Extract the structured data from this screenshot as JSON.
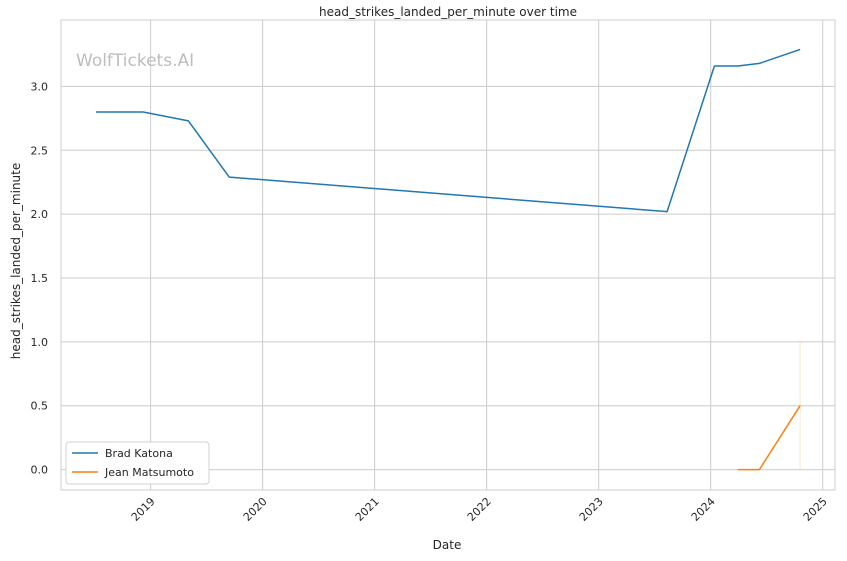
{
  "chart_data": {
    "type": "line",
    "title": "head_strikes_landed_per_minute over time",
    "xlabel": "Date",
    "ylabel": "head_strikes_landed_per_minute",
    "watermark": "WolfTickets.AI",
    "xlim": [
      "2018-03-15",
      "2025-02-10"
    ],
    "ylim": [
      -0.16,
      3.52
    ],
    "x_ticks": [
      "2019",
      "2020",
      "2021",
      "2022",
      "2023",
      "2024",
      "2025"
    ],
    "y_ticks": [
      "0.0",
      "0.5",
      "1.0",
      "1.5",
      "2.0",
      "2.5",
      "3.0"
    ],
    "grid": true,
    "legend_position": "lower-left",
    "series": [
      {
        "name": "Brad Katona",
        "color": "#1f77b4",
        "x": [
          "2018-07-07",
          "2018-12-08",
          "2019-05-04",
          "2019-09-14",
          "2023-08-12",
          "2024-01-13",
          "2024-03-30",
          "2024-06-08",
          "2024-10-19"
        ],
        "y": [
          2.8,
          2.8,
          2.73,
          2.29,
          2.02,
          3.16,
          3.16,
          3.18,
          3.29
        ]
      },
      {
        "name": "Jean Matsumoto",
        "color": "#ff7f0e",
        "x": [
          "2024-03-30",
          "2024-06-08",
          "2024-10-19"
        ],
        "y": [
          0.0,
          0.0,
          0.5
        ],
        "band": {
          "x": "2024-10-19",
          "low": 0.0,
          "high": 1.0
        }
      }
    ]
  }
}
